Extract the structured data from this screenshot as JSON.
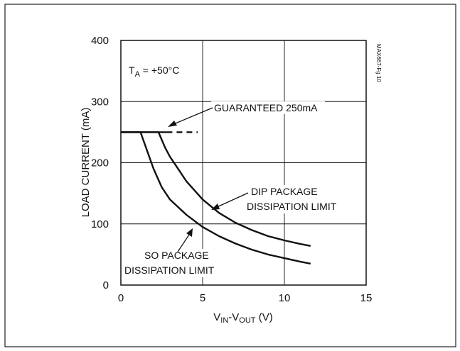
{
  "chart_data": {
    "type": "line",
    "figure_id": "MAX667-Fg 10",
    "condition": {
      "base": "T",
      "sub": "A",
      "rest": " = +50°C"
    },
    "xlabel": {
      "p1": "V",
      "s1": "IN",
      "p2": "-V",
      "s2": "OUT",
      "p3": " (V)"
    },
    "ylabel": "LOAD CURRENT (mA)",
    "xlim": [
      0,
      15
    ],
    "ylim": [
      0,
      400
    ],
    "xticks": [
      "0",
      "5",
      "10",
      "15"
    ],
    "yticks": [
      "0",
      "100",
      "200",
      "300",
      "400"
    ],
    "grid": true,
    "series": [
      {
        "name": "GUARANTEED 250mA",
        "style": "dashed",
        "points": [
          [
            0,
            250
          ],
          [
            2.8,
            250
          ],
          [
            4.7,
            250
          ]
        ]
      },
      {
        "name": "SO PACKAGE DISSIPATION LIMIT",
        "style": "solid",
        "points": [
          [
            0,
            250
          ],
          [
            1.2,
            250
          ],
          [
            1.6,
            220
          ],
          [
            2,
            190
          ],
          [
            2.5,
            160
          ],
          [
            3,
            140
          ],
          [
            4,
            115
          ],
          [
            5,
            95
          ],
          [
            6,
            80
          ],
          [
            7,
            68
          ],
          [
            8,
            58
          ],
          [
            9,
            50
          ],
          [
            10,
            44
          ],
          [
            11,
            38
          ],
          [
            11.6,
            35
          ]
        ]
      },
      {
        "name": "DIP PACKAGE DISSIPATION LIMIT",
        "style": "solid",
        "points": [
          [
            0,
            250
          ],
          [
            2.3,
            250
          ],
          [
            2.7,
            225
          ],
          [
            3,
            210
          ],
          [
            3.5,
            190
          ],
          [
            4,
            170
          ],
          [
            5,
            140
          ],
          [
            6,
            118
          ],
          [
            7,
            102
          ],
          [
            8,
            90
          ],
          [
            9,
            80
          ],
          [
            10,
            73
          ],
          [
            11,
            67
          ],
          [
            11.6,
            64
          ]
        ]
      }
    ],
    "annotations": [
      {
        "lines": [
          "GUARANTEED 250mA"
        ]
      },
      {
        "lines": [
          "DIP PACKAGE",
          "DISSIPATION LIMIT"
        ]
      },
      {
        "lines": [
          "SO PACKAGE",
          "DISSIPATION LIMIT"
        ]
      }
    ]
  }
}
